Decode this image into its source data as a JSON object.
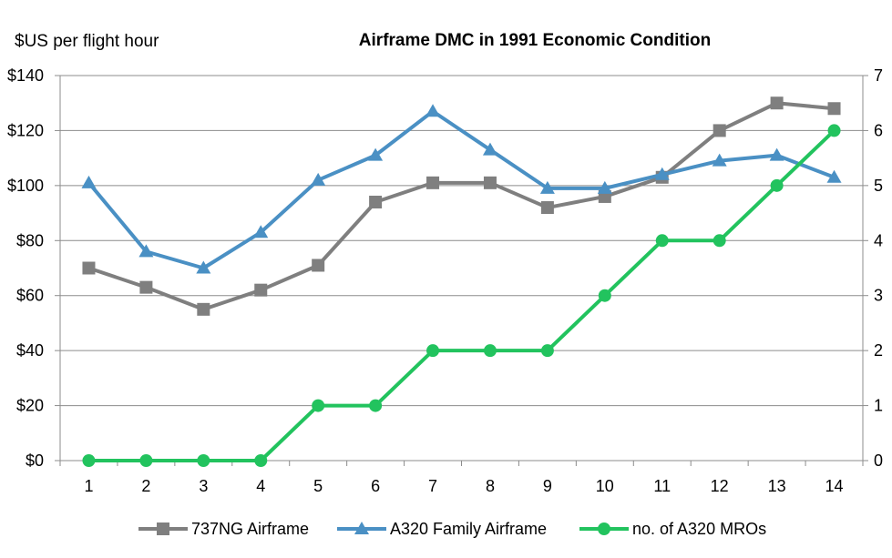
{
  "chart_data": {
    "type": "line",
    "title": "Airframe DMC  in 1991 Economic Condition",
    "ylabel": "$US per flight hour",
    "y2label": "",
    "x": [
      1,
      2,
      3,
      4,
      5,
      6,
      7,
      8,
      9,
      10,
      11,
      12,
      13,
      14
    ],
    "ylim": [
      0,
      140
    ],
    "yticks": [
      "$0",
      "$20",
      "$40",
      "$60",
      "$80",
      "$100",
      "$120",
      "$140"
    ],
    "y2lim": [
      0,
      7
    ],
    "y2ticks": [
      "0",
      "1",
      "2",
      "3",
      "4",
      "5",
      "6",
      "7"
    ],
    "grid": true,
    "legend_position": "bottom",
    "series": [
      {
        "name": "737NG Airframe",
        "axis": "left",
        "marker": "square",
        "color": "#7f7f7f",
        "values": [
          70,
          63,
          55,
          62,
          71,
          94,
          101,
          101,
          92,
          96,
          103,
          120,
          130,
          128
        ]
      },
      {
        "name": "A320 Family Airframe",
        "axis": "left",
        "marker": "triangle",
        "color": "#4a90c4",
        "values": [
          101,
          76,
          70,
          83,
          102,
          111,
          127,
          113,
          99,
          99,
          104,
          109,
          111,
          103
        ]
      },
      {
        "name": "no. of A320 MROs",
        "axis": "right",
        "marker": "circle",
        "color": "#22c35e",
        "values": [
          0,
          0,
          0,
          0,
          1,
          1,
          2,
          2,
          2,
          3,
          4,
          4,
          5,
          6
        ]
      }
    ]
  }
}
